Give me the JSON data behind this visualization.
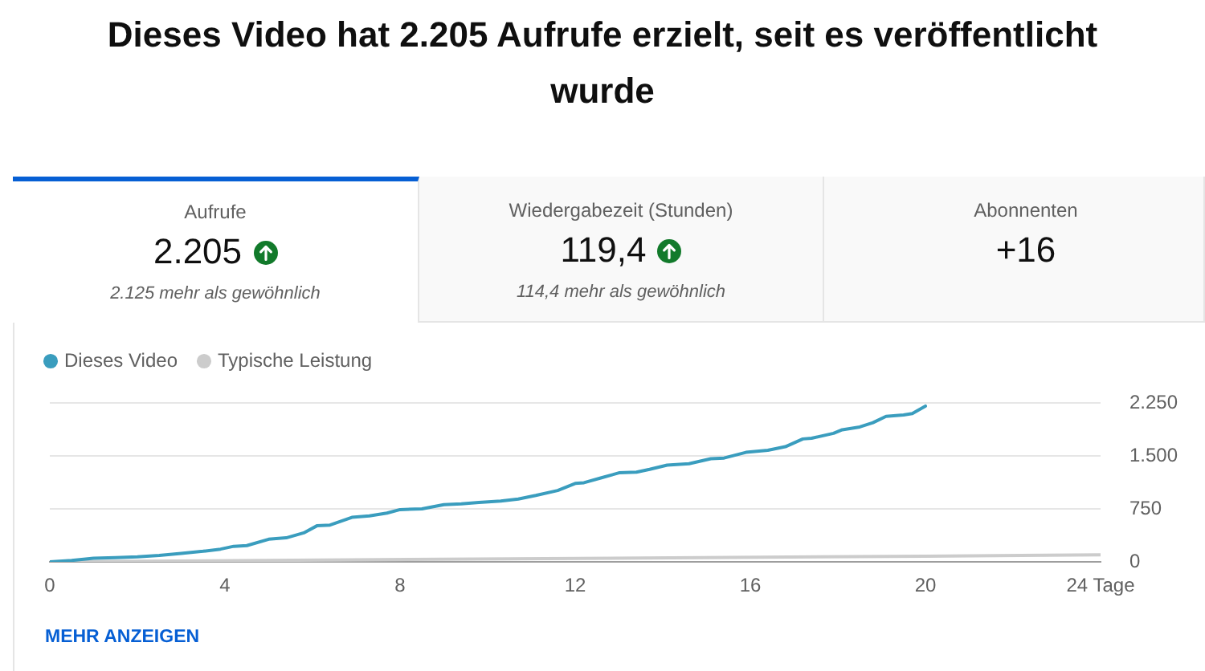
{
  "chart_data": [
    {
      "type": "other",
      "title": "Dieses Video hat 2.205 Aufrufe erzielt, seit es veröffentlicht wurde"
    },
    {
      "type": "other",
      "title": "Aufrufe",
      "annotations": [
        "2.205",
        "2.125 mehr als gewöhnlich"
      ]
    },
    {
      "type": "other",
      "title": "Wiedergabezeit (Stunden)",
      "annotations": [
        "119,4",
        "114,4 mehr als gewöhnlich"
      ]
    },
    {
      "type": "other",
      "title": "Abonnenten",
      "annotations": [
        "+16"
      ]
    },
    {
      "type": "line",
      "x": [
        0,
        0.5,
        1,
        1.5,
        2,
        2.5,
        3,
        3.5,
        3.9,
        4.2,
        4.5,
        5,
        5.4,
        5.8,
        6.1,
        6.4,
        6.9,
        7.3,
        7.7,
        8,
        8.5,
        9,
        9.4,
        9.8,
        10.3,
        10.7,
        11.1,
        11.6,
        12,
        12.2,
        12.6,
        13,
        13.4,
        13.7,
        14.1,
        14.6,
        15.1,
        15.4,
        15.9,
        16.4,
        16.8,
        17.2,
        17.4,
        17.9,
        18.1,
        18.5,
        18.8,
        19.1,
        19.5,
        19.7,
        20
      ],
      "series": [
        {
          "name": "Dieses Video",
          "color": "#3a9dbe",
          "values": [
            0,
            20,
            50,
            60,
            70,
            90,
            120,
            150,
            180,
            220,
            230,
            320,
            340,
            410,
            510,
            520,
            630,
            650,
            690,
            740,
            750,
            810,
            820,
            840,
            860,
            890,
            940,
            1010,
            1110,
            1120,
            1190,
            1260,
            1270,
            1310,
            1370,
            1390,
            1460,
            1470,
            1550,
            1580,
            1630,
            1740,
            1750,
            1820,
            1870,
            1910,
            1970,
            2060,
            2080,
            2100,
            2205
          ]
        },
        {
          "name": "Typische Leistung",
          "color": "#cccccc",
          "x": [
            0,
            20,
            24
          ],
          "values": [
            0,
            80,
            100
          ]
        }
      ],
      "xlim": [
        0,
        24
      ],
      "xticks": [
        0,
        4,
        8,
        12,
        16,
        20,
        {
          "value": 24,
          "label": "24 Tage"
        }
      ],
      "ylim": [
        0,
        2250
      ],
      "yticks": [
        0,
        750,
        {
          "value": 1500,
          "label": "1.500"
        },
        {
          "value": 2250,
          "label": "2.250"
        }
      ],
      "grid": "y",
      "legend": "top left",
      "marker": "none",
      "annotations": [
        "MEHR ANZEIGEN"
      ]
    }
  ]
}
